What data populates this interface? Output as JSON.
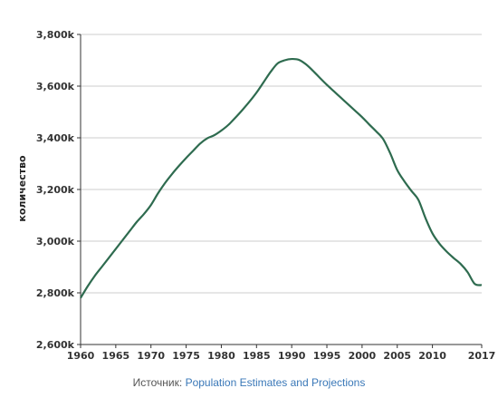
{
  "chart_data": {
    "type": "line",
    "title": "",
    "xlabel": "",
    "ylabel": "количество",
    "xlim": [
      1960,
      2017
    ],
    "ylim": [
      2600,
      3800
    ],
    "x_ticks": [
      1960,
      1965,
      1970,
      1975,
      1980,
      1985,
      1990,
      1995,
      2000,
      2005,
      2010,
      2017
    ],
    "y_ticks": [
      2600,
      2800,
      3000,
      3200,
      3400,
      3600,
      3800
    ],
    "y_tick_labels": [
      "2,600k",
      "2,800k",
      "3,000k",
      "3,200k",
      "3,400k",
      "3,600k",
      "3,800k"
    ],
    "grid": "horizontal",
    "line_color": "#2e6b4f",
    "series": [
      {
        "x": [
          1960,
          1961,
          1962,
          1963,
          1964,
          1965,
          1966,
          1967,
          1968,
          1969,
          1970,
          1971,
          1972,
          1973,
          1974,
          1975,
          1976,
          1977,
          1978,
          1979,
          1980,
          1981,
          1982,
          1983,
          1984,
          1985,
          1986,
          1987,
          1988,
          1989,
          1990,
          1991,
          1992,
          1993,
          1994,
          1995,
          1996,
          1997,
          1998,
          1999,
          2000,
          2001,
          2002,
          2003,
          2004,
          2005,
          2006,
          2007,
          2008,
          2009,
          2010,
          2011,
          2012,
          2013,
          2014,
          2015,
          2016,
          2017
        ],
        "values": [
          2780,
          2825,
          2865,
          2900,
          2935,
          2970,
          3005,
          3040,
          3075,
          3105,
          3140,
          3185,
          3225,
          3260,
          3292,
          3322,
          3350,
          3378,
          3398,
          3410,
          3428,
          3450,
          3478,
          3508,
          3540,
          3575,
          3615,
          3655,
          3688,
          3700,
          3705,
          3702,
          3685,
          3660,
          3632,
          3605,
          3580,
          3555,
          3530,
          3505,
          3480,
          3452,
          3425,
          3395,
          3340,
          3275,
          3232,
          3195,
          3160,
          3090,
          3030,
          2990,
          2960,
          2935,
          2912,
          2880,
          2835,
          2830
        ]
      }
    ]
  },
  "source": {
    "prefix": "Источник: ",
    "link_text": "Population Estimates and Projections"
  }
}
